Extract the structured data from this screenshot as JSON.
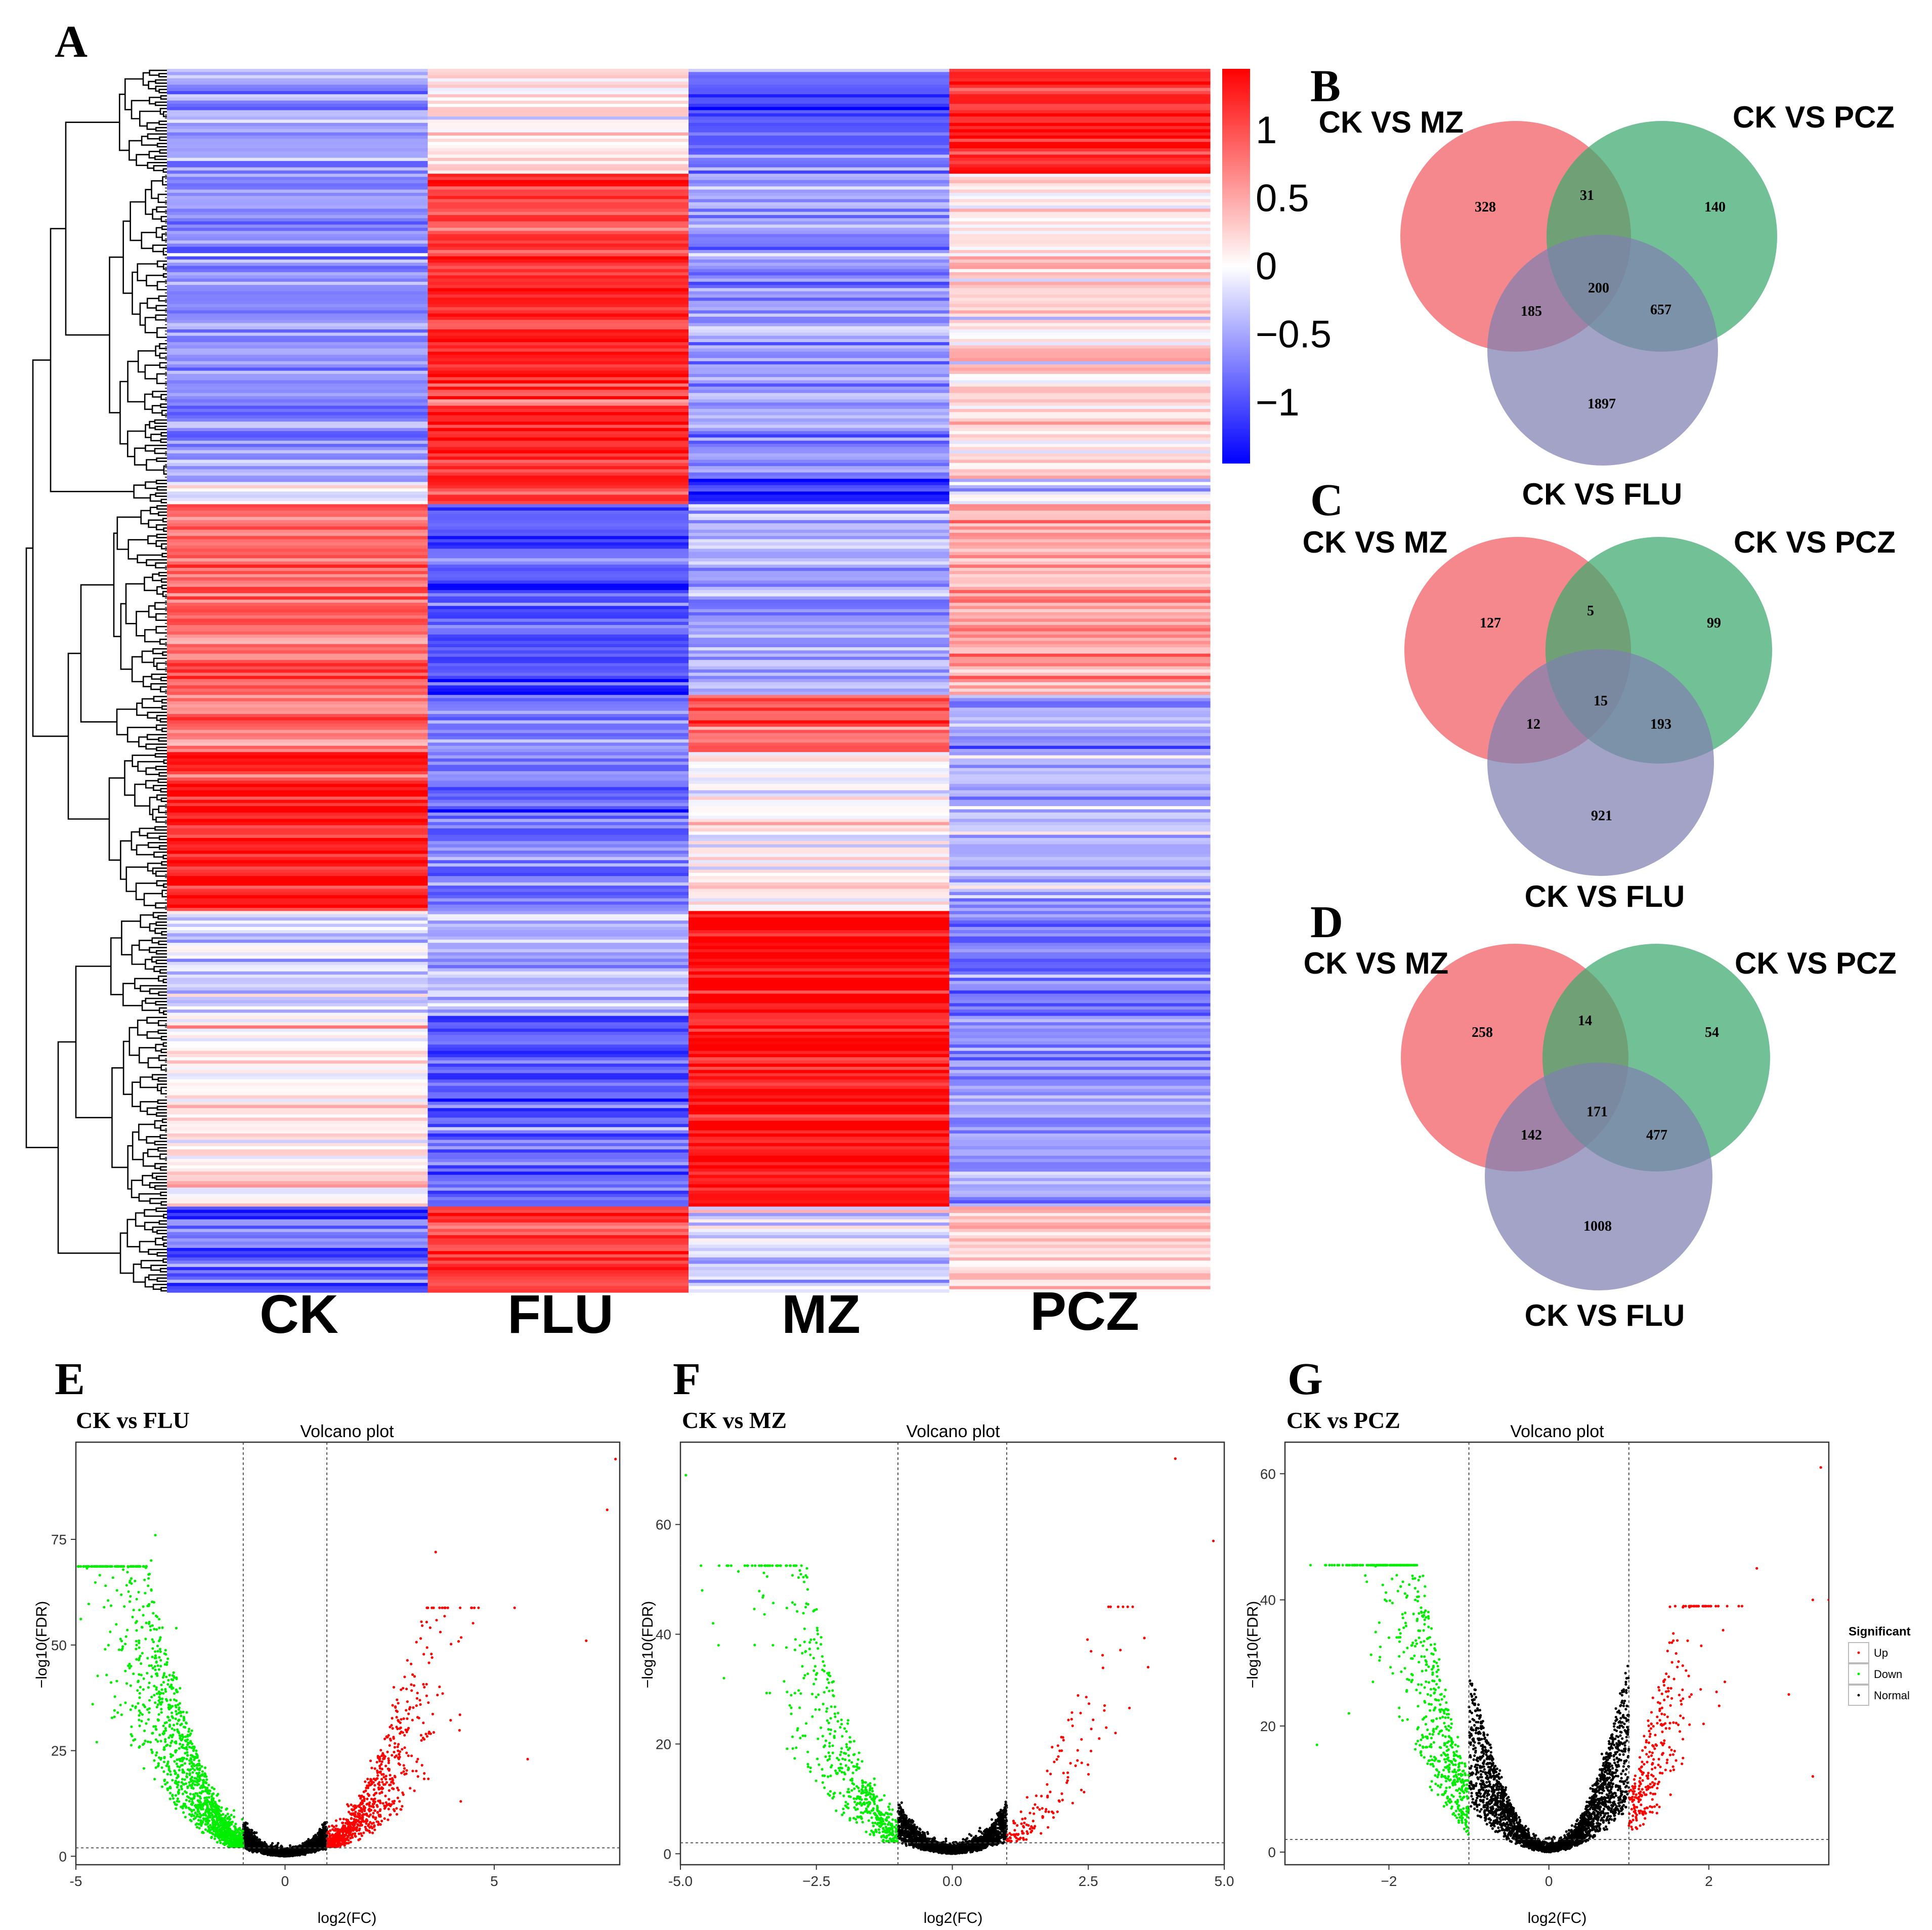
{
  "panel_letters": [
    "A",
    "B",
    "C",
    "D",
    "E",
    "F",
    "G"
  ],
  "chart_data": [
    {
      "id": "A",
      "type": "heatmap",
      "columns": [
        "CK",
        "FLU",
        "MZ",
        "PCZ"
      ],
      "row_dendrogram": true,
      "colorbar": {
        "ticks": [
          "1",
          "0.5",
          "0",
          "−0.5",
          "−1"
        ],
        "tick_values": [
          1,
          0.5,
          0,
          -0.5,
          -1
        ],
        "range": [
          -1.45,
          1.45
        ],
        "low_color": "#0000ff",
        "mid_color": "#ffffff",
        "high_color": "#ff0000"
      },
      "row_blocks": [
        {
          "rows": 33,
          "values": [
            -0.55,
            0.15,
            -0.9,
            1.25
          ]
        },
        {
          "rows": 96,
          "values": [
            -0.6,
            1.2,
            -0.6,
            0.2
          ]
        },
        {
          "rows": 8,
          "values": [
            -0.3,
            1.1,
            -1.2,
            -0.3
          ]
        },
        {
          "rows": 60,
          "values": [
            0.8,
            -1.0,
            -0.5,
            0.5
          ]
        },
        {
          "rows": 18,
          "values": [
            0.7,
            -0.6,
            0.9,
            -0.5
          ]
        },
        {
          "rows": 50,
          "values": [
            1.3,
            -0.8,
            0.0,
            -0.4
          ]
        },
        {
          "rows": 33,
          "values": [
            -0.2,
            -0.4,
            1.4,
            -0.7
          ]
        },
        {
          "rows": 60,
          "values": [
            0.1,
            -0.9,
            1.3,
            -0.6
          ]
        },
        {
          "rows": 27,
          "values": [
            -0.9,
            1.1,
            -0.2,
            0.3
          ]
        }
      ]
    },
    {
      "id": "B",
      "type": "venn",
      "sets": [
        "CK VS MZ",
        "CK VS PCZ",
        "CK VS FLU"
      ],
      "colors": [
        "#f05a5f",
        "#3ca96e",
        "#7e80b0"
      ],
      "regions": {
        "only_mz": 328,
        "mz_pcz": 31,
        "only_pcz": 140,
        "all": 200,
        "mz_flu": 185,
        "pcz_flu": 657,
        "only_flu": 1897
      }
    },
    {
      "id": "C",
      "type": "venn",
      "sets": [
        "CK VS MZ",
        "CK VS PCZ",
        "CK VS FLU"
      ],
      "colors": [
        "#f05a5f",
        "#3ca96e",
        "#7e80b0"
      ],
      "regions": {
        "only_mz": 127,
        "mz_pcz": 5,
        "only_pcz": 99,
        "all": 15,
        "mz_flu": 12,
        "pcz_flu": 193,
        "only_flu": 921
      }
    },
    {
      "id": "D",
      "type": "venn",
      "sets": [
        "CK VS MZ",
        "CK VS PCZ",
        "CK VS FLU"
      ],
      "colors": [
        "#f05a5f",
        "#3ca96e",
        "#7e80b0"
      ],
      "regions": {
        "only_mz": 258,
        "mz_pcz": 14,
        "only_pcz": 54,
        "all": 171,
        "mz_flu": 142,
        "pcz_flu": 477,
        "only_flu": 1008
      }
    },
    {
      "id": "E",
      "type": "scatter",
      "subtitle": "CK vs FLU",
      "title": "Volcano plot",
      "xlabel": "log2(FC)",
      "ylabel": "−log10(FDR)",
      "xlim": [
        -5,
        8
      ],
      "ylim": [
        -2,
        98
      ],
      "xticks": [
        -5,
        0,
        5
      ],
      "xtick_labels": [
        "-5",
        "0",
        "5"
      ],
      "yticks": [
        0,
        25,
        50,
        75
      ],
      "ytick_labels": [
        "0",
        "25",
        "50",
        "75"
      ],
      "fc_cutoff": 1,
      "fdr_line": 2,
      "down_extremes": [
        [
          -3.1,
          76
        ],
        [
          -3.2,
          70
        ],
        [
          -4.3,
          49
        ],
        [
          -3.8,
          52
        ],
        [
          -4.6,
          36
        ],
        [
          -4.5,
          27
        ],
        [
          -4.0,
          34
        ],
        [
          -2.6,
          54
        ]
      ],
      "up_extremes": [
        [
          7.9,
          94
        ],
        [
          7.7,
          82
        ],
        [
          3.6,
          72
        ],
        [
          7.2,
          51
        ],
        [
          4.2,
          13
        ],
        [
          5.8,
          23
        ],
        [
          2.6,
          40
        ],
        [
          3.3,
          28
        ]
      ],
      "n_down": 1500,
      "n_up": 800,
      "n_normal": 2600,
      "x_spread": 3.5,
      "colors": {
        "up": "#ff0000",
        "down": "#00ee00",
        "normal": "#000000"
      }
    },
    {
      "id": "F",
      "type": "scatter",
      "subtitle": "CK vs MZ",
      "title": "Volcano plot",
      "xlabel": "log2(FC)",
      "ylabel": "−log10(FDR)",
      "xlim": [
        -5,
        5
      ],
      "ylim": [
        -2,
        75
      ],
      "xticks": [
        -5,
        -2.5,
        0,
        2.5,
        5
      ],
      "xtick_labels": [
        "-5.0",
        "−2.5",
        "0.0",
        "2.5",
        "5.0"
      ],
      "yticks": [
        0,
        20,
        40,
        60
      ],
      "ytick_labels": [
        "0",
        "20",
        "40",
        "60"
      ],
      "fc_cutoff": 1,
      "fdr_line": 2,
      "down_extremes": [
        [
          -4.9,
          69
        ],
        [
          -4.6,
          48
        ],
        [
          -4.4,
          42
        ],
        [
          -4.3,
          38
        ],
        [
          -3.3,
          38
        ],
        [
          -2.6,
          39
        ],
        [
          -4.2,
          32
        ]
      ],
      "up_extremes": [
        [
          4.1,
          72
        ],
        [
          4.8,
          57
        ],
        [
          3.6,
          34
        ],
        [
          2.8,
          27
        ],
        [
          2.7,
          21
        ],
        [
          2.3,
          17
        ],
        [
          3.0,
          22
        ]
      ],
      "n_down": 550,
      "n_up": 140,
      "n_normal": 2200,
      "x_spread": 2.8,
      "colors": {
        "up": "#ff0000",
        "down": "#00ee00",
        "normal": "#000000"
      }
    },
    {
      "id": "G",
      "type": "scatter",
      "subtitle": "CK vs PCZ",
      "title": "Volcano plot",
      "xlabel": "log2(FC)",
      "ylabel": "−log10(FDR)",
      "xlim": [
        -3.3,
        3.5
      ],
      "ylim": [
        -2,
        65
      ],
      "xticks": [
        -2,
        0,
        2
      ],
      "xtick_labels": [
        "−2",
        "0",
        "2"
      ],
      "yticks": [
        0,
        20,
        40,
        60
      ],
      "ytick_labels": [
        "0",
        "20",
        "40",
        "60"
      ],
      "fc_cutoff": 1,
      "fdr_line": 2,
      "down_extremes": [
        [
          -2.0,
          34
        ],
        [
          -2.2,
          27
        ],
        [
          -2.5,
          22
        ],
        [
          -2.9,
          17
        ]
      ],
      "up_extremes": [
        [
          3.4,
          61
        ],
        [
          2.6,
          45
        ],
        [
          3.3,
          40
        ],
        [
          3.5,
          40
        ],
        [
          2.2,
          27
        ],
        [
          3.0,
          25
        ],
        [
          3.3,
          12
        ]
      ],
      "n_down": 600,
      "n_up": 300,
      "n_normal": 2600,
      "x_spread": 1.4,
      "colors": {
        "up": "#ff0000",
        "down": "#00ee00",
        "normal": "#000000"
      }
    }
  ],
  "legend": {
    "title": "Significant",
    "items": [
      {
        "label": "Up",
        "color": "#ff0000"
      },
      {
        "label": "Down",
        "color": "#00ee00"
      },
      {
        "label": "Normal",
        "color": "#000000"
      }
    ]
  }
}
